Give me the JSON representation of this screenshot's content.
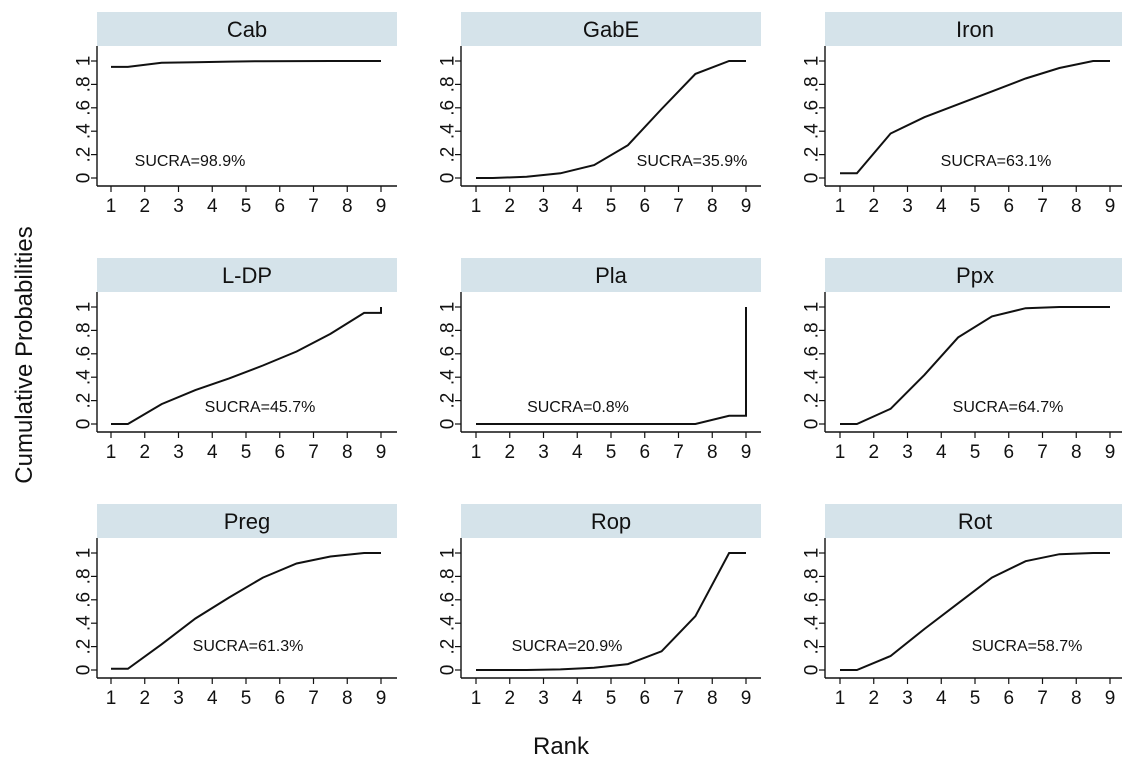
{
  "figure": {
    "ylabel": "Cumulative Probabilities",
    "xlabel": "Rank"
  },
  "style": {
    "panel_header_color": "#d5e3ea",
    "line_color": "#111111",
    "axis_color": "#111111"
  },
  "chart_data": [
    {
      "type": "line",
      "title": "Cab",
      "annotation": "SUCRA=98.9%",
      "x": [
        1,
        1.5,
        2.5,
        3.5,
        4.5,
        5.5,
        6.5,
        7.5,
        8.5,
        9
      ],
      "y": [
        0.95,
        0.95,
        0.985,
        0.99,
        0.995,
        0.998,
        0.999,
        1,
        1,
        1
      ],
      "xticks": [
        1,
        2,
        3,
        4,
        5,
        6,
        7,
        8,
        9
      ],
      "yticks": [
        "0",
        ".2",
        ".4",
        ".6",
        ".8",
        "1"
      ],
      "xlim": [
        1,
        9
      ],
      "ylim": [
        0,
        1
      ]
    },
    {
      "type": "line",
      "title": "GabE",
      "annotation": "SUCRA=35.9%",
      "x": [
        1,
        1.5,
        2.5,
        3.5,
        4.5,
        5.5,
        6.5,
        7.5,
        8.5,
        9
      ],
      "y": [
        0,
        0,
        0.01,
        0.04,
        0.11,
        0.28,
        0.59,
        0.89,
        1,
        1
      ],
      "xticks": [
        1,
        2,
        3,
        4,
        5,
        6,
        7,
        8,
        9
      ],
      "yticks": [
        "0",
        ".2",
        ".4",
        ".6",
        ".8",
        "1"
      ],
      "xlim": [
        1,
        9
      ],
      "ylim": [
        0,
        1
      ]
    },
    {
      "type": "line",
      "title": "Iron",
      "annotation": "SUCRA=63.1%",
      "x": [
        1,
        1.5,
        2.5,
        3.5,
        4.5,
        5.5,
        6.5,
        7.5,
        8.5,
        9
      ],
      "y": [
        0.04,
        0.04,
        0.38,
        0.52,
        0.63,
        0.74,
        0.85,
        0.94,
        1,
        1
      ],
      "xticks": [
        1,
        2,
        3,
        4,
        5,
        6,
        7,
        8,
        9
      ],
      "yticks": [
        "0",
        ".2",
        ".4",
        ".6",
        ".8",
        "1"
      ],
      "xlim": [
        1,
        9
      ],
      "ylim": [
        0,
        1
      ]
    },
    {
      "type": "line",
      "title": "L-DP",
      "annotation": "SUCRA=45.7%",
      "x": [
        1,
        1.5,
        2.5,
        3.5,
        4.5,
        5.5,
        6.5,
        7.5,
        8.5,
        9,
        9
      ],
      "y": [
        0,
        0,
        0.17,
        0.29,
        0.39,
        0.5,
        0.62,
        0.77,
        0.95,
        0.95,
        1
      ],
      "xticks": [
        1,
        2,
        3,
        4,
        5,
        6,
        7,
        8,
        9
      ],
      "yticks": [
        "0",
        ".2",
        ".4",
        ".6",
        ".8",
        "1"
      ],
      "xlim": [
        1,
        9
      ],
      "ylim": [
        0,
        1
      ]
    },
    {
      "type": "line",
      "title": "Pla",
      "annotation": "SUCRA=0.8%",
      "x": [
        1,
        1.5,
        2.5,
        3.5,
        4.5,
        5.5,
        6.5,
        7.5,
        8.5,
        9,
        9
      ],
      "y": [
        0,
        0,
        0,
        0,
        0,
        0,
        0,
        0,
        0.07,
        0.07,
        1
      ],
      "xticks": [
        1,
        2,
        3,
        4,
        5,
        6,
        7,
        8,
        9
      ],
      "yticks": [
        "0",
        ".2",
        ".4",
        ".6",
        ".8",
        "1"
      ],
      "xlim": [
        1,
        9
      ],
      "ylim": [
        0,
        1
      ]
    },
    {
      "type": "line",
      "title": "Ppx",
      "annotation": "SUCRA=64.7%",
      "x": [
        1,
        1.5,
        2.5,
        3.5,
        4.5,
        5.5,
        6.5,
        7.5,
        8.5,
        9
      ],
      "y": [
        0,
        0,
        0.13,
        0.42,
        0.74,
        0.92,
        0.99,
        1,
        1,
        1
      ],
      "xticks": [
        1,
        2,
        3,
        4,
        5,
        6,
        7,
        8,
        9
      ],
      "yticks": [
        "0",
        ".2",
        ".4",
        ".6",
        ".8",
        "1"
      ],
      "xlim": [
        1,
        9
      ],
      "ylim": [
        0,
        1
      ]
    },
    {
      "type": "line",
      "title": "Preg",
      "annotation": "SUCRA=61.3%",
      "x": [
        1,
        1.5,
        2.5,
        3.5,
        4.5,
        5.5,
        6.5,
        7.5,
        8.5,
        9
      ],
      "y": [
        0.01,
        0.01,
        0.22,
        0.44,
        0.62,
        0.79,
        0.91,
        0.97,
        1,
        1
      ],
      "xticks": [
        1,
        2,
        3,
        4,
        5,
        6,
        7,
        8,
        9
      ],
      "yticks": [
        "0",
        ".2",
        ".4",
        ".6",
        ".8",
        "1"
      ],
      "xlim": [
        1,
        9
      ],
      "ylim": [
        0,
        1
      ]
    },
    {
      "type": "line",
      "title": "Rop",
      "annotation": "SUCRA=20.9%",
      "x": [
        1,
        1.5,
        2.5,
        3.5,
        4.5,
        5.5,
        6.5,
        7.5,
        8.5,
        9
      ],
      "y": [
        0,
        0,
        0,
        0.005,
        0.02,
        0.05,
        0.16,
        0.46,
        1,
        1
      ],
      "xticks": [
        1,
        2,
        3,
        4,
        5,
        6,
        7,
        8,
        9
      ],
      "yticks": [
        "0",
        ".2",
        ".4",
        ".6",
        ".8",
        "1"
      ],
      "xlim": [
        1,
        9
      ],
      "ylim": [
        0,
        1
      ]
    },
    {
      "type": "line",
      "title": "Rot",
      "annotation": "SUCRA=58.7%",
      "x": [
        1,
        1.5,
        2.5,
        3.5,
        4.5,
        5.5,
        6.5,
        7.5,
        8.5,
        9
      ],
      "y": [
        0,
        0,
        0.12,
        0.35,
        0.57,
        0.79,
        0.93,
        0.99,
        1,
        1
      ],
      "xticks": [
        1,
        2,
        3,
        4,
        5,
        6,
        7,
        8,
        9
      ],
      "yticks": [
        "0",
        ".2",
        ".4",
        ".6",
        ".8",
        "1"
      ],
      "xlim": [
        1,
        9
      ],
      "ylim": [
        0,
        1
      ]
    }
  ]
}
